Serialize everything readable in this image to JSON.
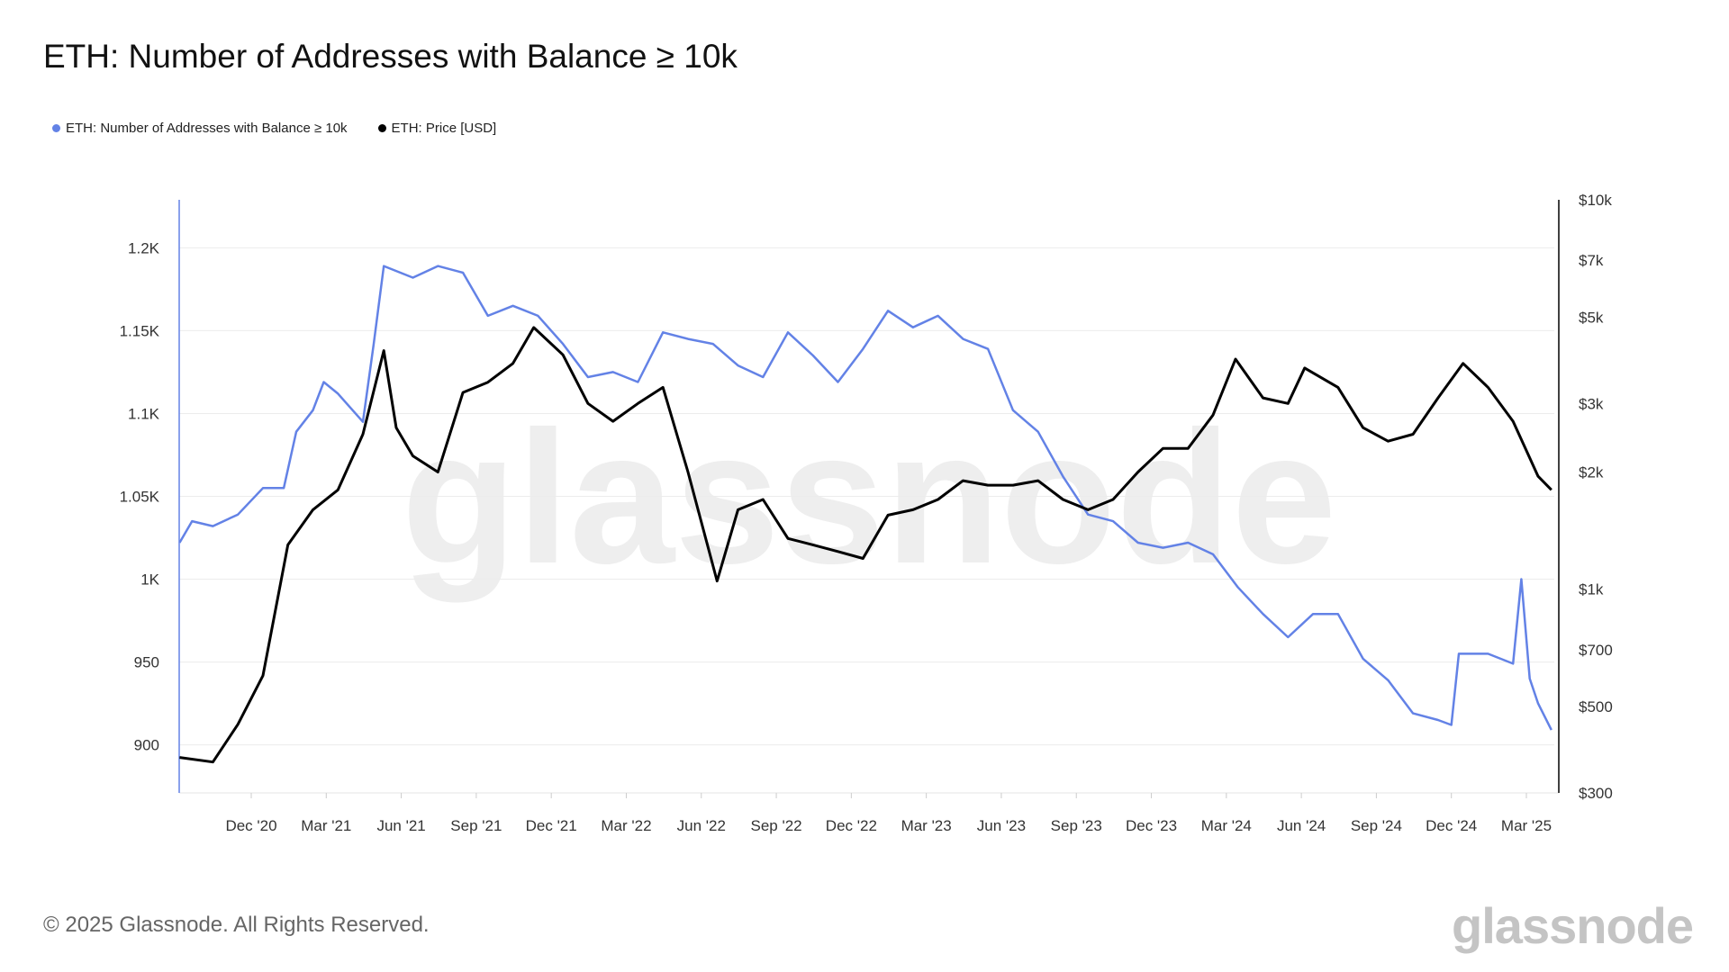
{
  "title": "ETH: Number of Addresses with Balance ≥ 10k",
  "footer": "© 2025 Glassnode. All Rights Reserved.",
  "logo_text": "glassnode",
  "watermark": "glassnode",
  "chart_data": {
    "type": "line",
    "title": "ETH: Number of Addresses with Balance ≥ 10k",
    "legend_position": "top-left",
    "grid": true,
    "x_ticks": [
      {
        "date": "2020-12-01",
        "label": "Dec '20"
      },
      {
        "date": "2021-03-01",
        "label": "Mar '21"
      },
      {
        "date": "2021-06-01",
        "label": "Jun '21"
      },
      {
        "date": "2021-09-01",
        "label": "Sep '21"
      },
      {
        "date": "2021-12-01",
        "label": "Dec '21"
      },
      {
        "date": "2022-03-01",
        "label": "Mar '22"
      },
      {
        "date": "2022-06-01",
        "label": "Jun '22"
      },
      {
        "date": "2022-09-01",
        "label": "Sep '22"
      },
      {
        "date": "2022-12-01",
        "label": "Dec '22"
      },
      {
        "date": "2023-03-01",
        "label": "Mar '23"
      },
      {
        "date": "2023-06-01",
        "label": "Jun '23"
      },
      {
        "date": "2023-09-01",
        "label": "Sep '23"
      },
      {
        "date": "2023-12-01",
        "label": "Dec '23"
      },
      {
        "date": "2024-03-01",
        "label": "Mar '24"
      },
      {
        "date": "2024-06-01",
        "label": "Jun '24"
      },
      {
        "date": "2024-09-01",
        "label": "Sep '24"
      },
      {
        "date": "2024-12-01",
        "label": "Dec '24"
      },
      {
        "date": "2025-03-01",
        "label": "Mar '25"
      }
    ],
    "y_left": {
      "range": [
        871,
        1229
      ],
      "ticks": [
        {
          "v": 900,
          "label": "900"
        },
        {
          "v": 950,
          "label": "950"
        },
        {
          "v": 1000,
          "label": "1K"
        },
        {
          "v": 1050,
          "label": "1.05K"
        },
        {
          "v": 1100,
          "label": "1.1K"
        },
        {
          "v": 1150,
          "label": "1.15K"
        },
        {
          "v": 1200,
          "label": "1.2K"
        }
      ]
    },
    "y_right": {
      "scale": "log",
      "range": [
        300,
        10000
      ],
      "ticks": [
        {
          "v": 300,
          "label": "$300"
        },
        {
          "v": 500,
          "label": "$500"
        },
        {
          "v": 700,
          "label": "$700"
        },
        {
          "v": 1000,
          "label": "$1k"
        },
        {
          "v": 2000,
          "label": "$2k"
        },
        {
          "v": 3000,
          "label": "$3k"
        },
        {
          "v": 5000,
          "label": "$5k"
        },
        {
          "v": 7000,
          "label": "$7k"
        },
        {
          "v": 10000,
          "label": "$10k"
        }
      ]
    },
    "series": [
      {
        "name": "ETH: Number of Addresses with Balance ≥ 10k",
        "axis": "left",
        "color": "#6382e6",
        "points": [
          [
            "2020-09-05",
            1022
          ],
          [
            "2020-09-20",
            1035
          ],
          [
            "2020-10-15",
            1032
          ],
          [
            "2020-11-15",
            1039
          ],
          [
            "2020-12-15",
            1055
          ],
          [
            "2021-01-10",
            1055
          ],
          [
            "2021-01-25",
            1089
          ],
          [
            "2021-02-15",
            1102
          ],
          [
            "2021-02-28",
            1119
          ],
          [
            "2021-03-15",
            1112
          ],
          [
            "2021-04-15",
            1095
          ],
          [
            "2021-04-28",
            1142
          ],
          [
            "2021-05-10",
            1189
          ],
          [
            "2021-06-15",
            1182
          ],
          [
            "2021-07-15",
            1189
          ],
          [
            "2021-08-15",
            1185
          ],
          [
            "2021-09-15",
            1159
          ],
          [
            "2021-10-15",
            1165
          ],
          [
            "2021-11-15",
            1159
          ],
          [
            "2021-12-15",
            1142
          ],
          [
            "2022-01-15",
            1122
          ],
          [
            "2022-02-15",
            1125
          ],
          [
            "2022-03-15",
            1119
          ],
          [
            "2022-04-15",
            1149
          ],
          [
            "2022-05-15",
            1145
          ],
          [
            "2022-06-15",
            1142
          ],
          [
            "2022-07-15",
            1129
          ],
          [
            "2022-08-15",
            1122
          ],
          [
            "2022-09-15",
            1149
          ],
          [
            "2022-10-15",
            1135
          ],
          [
            "2022-11-15",
            1119
          ],
          [
            "2022-12-15",
            1139
          ],
          [
            "2023-01-15",
            1162
          ],
          [
            "2023-02-15",
            1152
          ],
          [
            "2023-03-15",
            1159
          ],
          [
            "2023-04-15",
            1145
          ],
          [
            "2023-05-15",
            1139
          ],
          [
            "2023-06-15",
            1102
          ],
          [
            "2023-07-15",
            1089
          ],
          [
            "2023-08-15",
            1062
          ],
          [
            "2023-09-15",
            1039
          ],
          [
            "2023-10-15",
            1035
          ],
          [
            "2023-11-15",
            1022
          ],
          [
            "2023-12-15",
            1019
          ],
          [
            "2024-01-15",
            1022
          ],
          [
            "2024-02-15",
            1015
          ],
          [
            "2024-03-15",
            995
          ],
          [
            "2024-04-15",
            979
          ],
          [
            "2024-05-15",
            965
          ],
          [
            "2024-06-15",
            979
          ],
          [
            "2024-07-15",
            979
          ],
          [
            "2024-08-15",
            952
          ],
          [
            "2024-09-15",
            939
          ],
          [
            "2024-10-15",
            919
          ],
          [
            "2024-11-15",
            915
          ],
          [
            "2024-12-01",
            912
          ],
          [
            "2024-12-10",
            955
          ],
          [
            "2025-01-15",
            955
          ],
          [
            "2025-02-15",
            949
          ],
          [
            "2025-02-25",
            1000
          ],
          [
            "2025-03-05",
            940
          ],
          [
            "2025-03-15",
            925
          ],
          [
            "2025-04-01",
            909
          ]
        ]
      },
      {
        "name": "ETH: Price [USD]",
        "axis": "right",
        "color": "#000000",
        "points": [
          [
            "2020-09-05",
            370
          ],
          [
            "2020-10-15",
            360
          ],
          [
            "2020-11-15",
            450
          ],
          [
            "2020-12-15",
            600
          ],
          [
            "2021-01-15",
            1300
          ],
          [
            "2021-02-15",
            1600
          ],
          [
            "2021-03-15",
            1800
          ],
          [
            "2021-04-15",
            2500
          ],
          [
            "2021-05-10",
            4100
          ],
          [
            "2021-05-25",
            2600
          ],
          [
            "2021-06-15",
            2200
          ],
          [
            "2021-07-15",
            2000
          ],
          [
            "2021-08-15",
            3200
          ],
          [
            "2021-09-15",
            3400
          ],
          [
            "2021-10-15",
            3800
          ],
          [
            "2021-11-10",
            4700
          ],
          [
            "2021-12-15",
            4000
          ],
          [
            "2022-01-15",
            3000
          ],
          [
            "2022-02-15",
            2700
          ],
          [
            "2022-03-15",
            3000
          ],
          [
            "2022-04-15",
            3300
          ],
          [
            "2022-05-15",
            2000
          ],
          [
            "2022-06-20",
            1050
          ],
          [
            "2022-07-15",
            1600
          ],
          [
            "2022-08-15",
            1700
          ],
          [
            "2022-09-15",
            1350
          ],
          [
            "2022-10-15",
            1300
          ],
          [
            "2022-11-15",
            1250
          ],
          [
            "2022-12-15",
            1200
          ],
          [
            "2023-01-15",
            1550
          ],
          [
            "2023-02-15",
            1600
          ],
          [
            "2023-03-15",
            1700
          ],
          [
            "2023-04-15",
            1900
          ],
          [
            "2023-05-15",
            1850
          ],
          [
            "2023-06-15",
            1850
          ],
          [
            "2023-07-15",
            1900
          ],
          [
            "2023-08-15",
            1700
          ],
          [
            "2023-09-15",
            1600
          ],
          [
            "2023-10-15",
            1700
          ],
          [
            "2023-11-15",
            2000
          ],
          [
            "2023-12-15",
            2300
          ],
          [
            "2024-01-15",
            2300
          ],
          [
            "2024-02-15",
            2800
          ],
          [
            "2024-03-12",
            3900
          ],
          [
            "2024-04-15",
            3100
          ],
          [
            "2024-05-15",
            3000
          ],
          [
            "2024-06-05",
            3700
          ],
          [
            "2024-07-15",
            3300
          ],
          [
            "2024-08-15",
            2600
          ],
          [
            "2024-09-15",
            2400
          ],
          [
            "2024-10-15",
            2500
          ],
          [
            "2024-11-15",
            3100
          ],
          [
            "2024-12-15",
            3800
          ],
          [
            "2025-01-15",
            3300
          ],
          [
            "2025-02-15",
            2700
          ],
          [
            "2025-03-15",
            1950
          ],
          [
            "2025-04-01",
            1800
          ]
        ]
      }
    ]
  }
}
